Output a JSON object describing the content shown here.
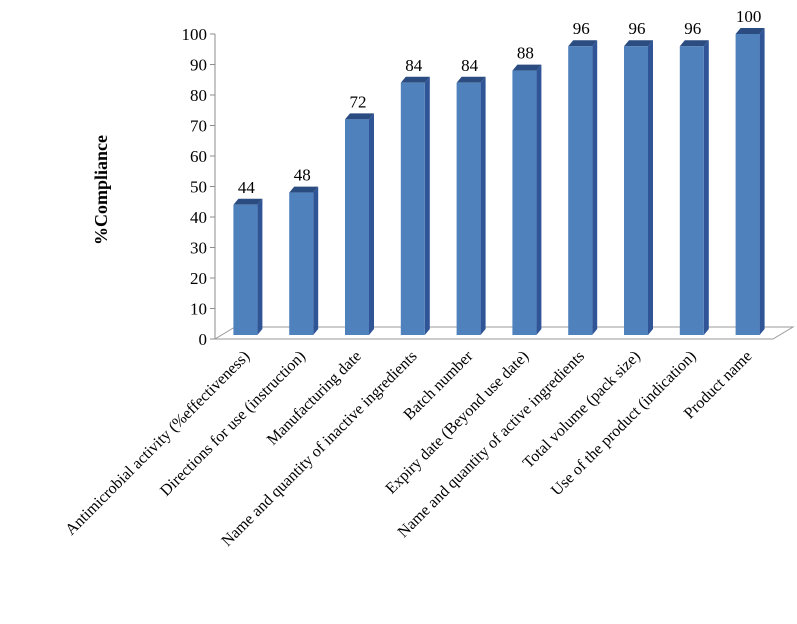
{
  "chart_data": {
    "type": "bar",
    "style": "3d-column",
    "title": "",
    "xlabel": "",
    "ylabel": "%Compliance",
    "ylim": [
      0,
      100
    ],
    "yticks": [
      0,
      10,
      20,
      30,
      40,
      50,
      60,
      70,
      80,
      90,
      100
    ],
    "grid": false,
    "legend": "none",
    "bar_color": "#4f81bd",
    "categories": [
      "Antimicrobial activity (%effectiveness)",
      "Directions for use (instruction)",
      "Manufacturing date",
      "Name and quantity of inactive ingredients",
      "Batch number",
      "Expiry date (Beyond use date)",
      "Name and quantity of active ingredients",
      "Total volume (pack size)",
      "Use of the product (indication)",
      "Product name"
    ],
    "values": [
      44,
      48,
      72,
      84,
      84,
      88,
      96,
      96,
      96,
      100
    ]
  }
}
